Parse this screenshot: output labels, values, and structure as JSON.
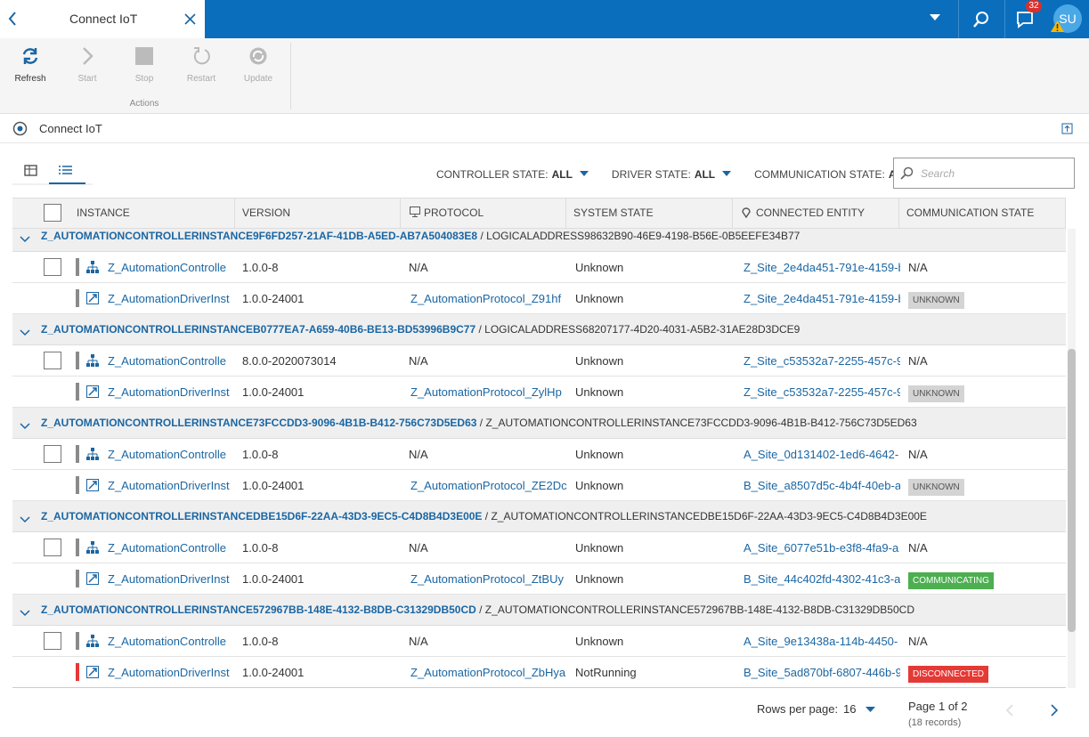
{
  "tab": {
    "title": "Connect IoT"
  },
  "topbar": {
    "notifications": "32",
    "avatar": "SU"
  },
  "toolbar": {
    "buttons": [
      "Refresh",
      "Start",
      "Stop",
      "Restart",
      "Update"
    ],
    "group": "Actions"
  },
  "breadcrumb": {
    "title": "Connect IoT"
  },
  "filters": [
    {
      "label": "CONTROLLER STATE:",
      "value": "ALL"
    },
    {
      "label": "DRIVER STATE:",
      "value": "ALL"
    },
    {
      "label": "COMMUNICATION STATE:",
      "value": "ALL"
    }
  ],
  "search": {
    "placeholder": "Search"
  },
  "table": {
    "columns": [
      "INSTANCE",
      "VERSION",
      "PROTOCOL",
      "SYSTEM STATE",
      "CONNECTED ENTITY",
      "COMMUNICATION STATE"
    ],
    "groups": [
      {
        "link": "Z_AUTOMATIONCONTROLLERINSTANCE9F6FD257-21AF-41DB-A5ED-AB7A504083E8",
        "rest": "/ LOGICALADDRESS98632B90-46E9-4198-B56E-0B5EEFE34B77",
        "rows": [
          {
            "instance": "Z_AutomationControlle",
            "version": "1.0.0-8",
            "protocol": "N/A",
            "state": "Unknown",
            "entity": "Z_Site_2e4da451-791e-4159-b",
            "comm": "N/A",
            "bar_color": "#8a8a8a"
          },
          {
            "instance": "Z_AutomationDriverInst",
            "version": "1.0.0-24001",
            "protocol": "Z_AutomationProtocol_Z91hf",
            "state": "Unknown",
            "entity": "Z_Site_2e4da451-791e-4159-b",
            "comm": "UNKNOWN",
            "comm_color": "#d4d4d4",
            "bar_color": "#8a8a8a"
          }
        ]
      },
      {
        "link": "Z_AUTOMATIONCONTROLLERINSTANCEB0777EA7-A659-40B6-BE13-BD53996B9C77",
        "rest": "/ LOGICALADDRESS68207177-4D20-4031-A5B2-31AE28D3DCE9",
        "rows": [
          {
            "instance": "Z_AutomationControlle",
            "version": "8.0.0-2020073014",
            "protocol": "N/A",
            "state": "Unknown",
            "entity": "Z_Site_c53532a7-2255-457c-9",
            "comm": "N/A",
            "bar_color": "#8a8a8a"
          },
          {
            "instance": "Z_AutomationDriverInst",
            "version": "1.0.0-24001",
            "protocol": "Z_AutomationProtocol_ZylHp",
            "state": "Unknown",
            "entity": "Z_Site_c53532a7-2255-457c-9",
            "comm": "UNKNOWN",
            "comm_color": "#d4d4d4",
            "bar_color": "#8a8a8a"
          }
        ]
      },
      {
        "link": "Z_AUTOMATIONCONTROLLERINSTANCE73FCCDD3-9096-4B1B-B412-756C73D5ED63",
        "rest": "/ Z_AUTOMATIONCONTROLLERINSTANCE73FCCDD3-9096-4B1B-B412-756C73D5ED63",
        "rows": [
          {
            "instance": "Z_AutomationControlle",
            "version": "1.0.0-8",
            "protocol": "N/A",
            "state": "Unknown",
            "entity": "A_Site_0d131402-1ed6-4642-",
            "comm": "N/A",
            "bar_color": "#8a8a8a"
          },
          {
            "instance": "Z_AutomationDriverInst",
            "version": "1.0.0-24001",
            "protocol": "Z_AutomationProtocol_ZE2Dc",
            "state": "Unknown",
            "entity": "B_Site_a8507d5c-4b4f-40eb-a",
            "comm": "UNKNOWN",
            "comm_color": "#d4d4d4",
            "bar_color": "#8a8a8a"
          }
        ]
      },
      {
        "link": "Z_AUTOMATIONCONTROLLERINSTANCEDBE15D6F-22AA-43D3-9EC5-C4D8B4D3E00E",
        "rest": "/ Z_AUTOMATIONCONTROLLERINSTANCEDBE15D6F-22AA-43D3-9EC5-C4D8B4D3E00E",
        "rows": [
          {
            "instance": "Z_AutomationControlle",
            "version": "1.0.0-8",
            "protocol": "N/A",
            "state": "Unknown",
            "entity": "A_Site_6077e51b-e3f8-4fa9-a",
            "comm": "N/A",
            "bar_color": "#8a8a8a"
          },
          {
            "instance": "Z_AutomationDriverInst",
            "version": "1.0.0-24001",
            "protocol": "Z_AutomationProtocol_ZtBUy",
            "state": "Unknown",
            "entity": "B_Site_44c402fd-4302-41c3-a",
            "comm": "COMMUNICATING",
            "comm_color": "#4caf50",
            "bar_color": "#8a8a8a"
          }
        ]
      },
      {
        "link": "Z_AUTOMATIONCONTROLLERINSTANCE572967BB-148E-4132-B8DB-C31329DB50CD",
        "rest": "/ Z_AUTOMATIONCONTROLLERINSTANCE572967BB-148E-4132-B8DB-C31329DB50CD",
        "rows": [
          {
            "instance": "Z_AutomationControlle",
            "version": "1.0.0-8",
            "protocol": "N/A",
            "state": "Unknown",
            "entity": "A_Site_9e13438a-114b-4450-",
            "comm": "N/A",
            "bar_color": "#8a8a8a"
          },
          {
            "instance": "Z_AutomationDriverInst",
            "version": "1.0.0-24001",
            "protocol": "Z_AutomationProtocol_ZbHya",
            "state": "NotRunning",
            "entity": "B_Site_5ad870bf-6807-446b-9",
            "comm": "DISCONNECTED",
            "comm_color": "#e53935",
            "bar_color": "#e53935"
          }
        ]
      }
    ]
  },
  "pagination": {
    "rows_label": "Rows per page:",
    "rows_value": "16",
    "page": "Page 1 of 2",
    "records": "(18 records)"
  }
}
